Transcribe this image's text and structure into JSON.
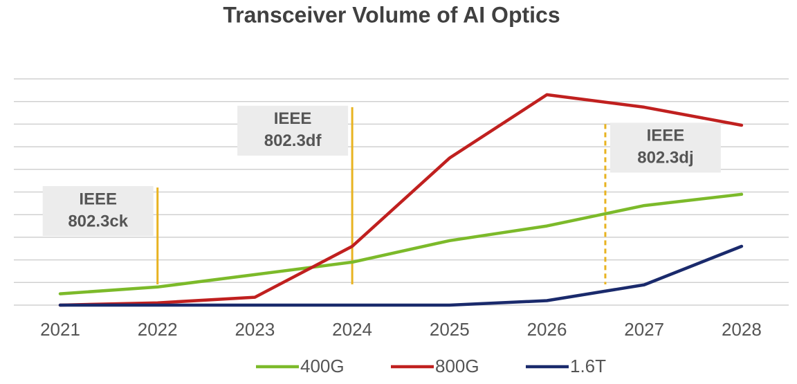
{
  "chart_data": {
    "type": "line",
    "title": "Transceiver Volume of AI Optics",
    "categories": [
      "2021",
      "2022",
      "2023",
      "2024",
      "2025",
      "2026",
      "2027",
      "2028"
    ],
    "series": [
      {
        "name": "400G",
        "color": "#7cba2a",
        "values": [
          0.5,
          0.8,
          1.35,
          1.9,
          2.85,
          3.5,
          4.4,
          4.9
        ]
      },
      {
        "name": "800G",
        "color": "#c0201f",
        "values": [
          0,
          0.1,
          0.35,
          2.6,
          6.5,
          9.3,
          8.75,
          7.95
        ]
      },
      {
        "name": "1.6T",
        "color": "#1a2a6c",
        "values": [
          0,
          0,
          0,
          0,
          0,
          0.2,
          0.9,
          2.6
        ]
      }
    ],
    "ylim": [
      0,
      10
    ],
    "yticks": [
      0,
      1,
      2,
      3,
      4,
      5,
      6,
      7,
      8,
      9,
      10
    ],
    "grid": true,
    "legend": "bottom",
    "annotations": [
      {
        "lines": [
          "IEEE",
          "802.3ck"
        ],
        "x": 2022,
        "y": 5.2,
        "style": "solid",
        "side": "left",
        "color": "#e8b321"
      },
      {
        "lines": [
          "IEEE",
          "802.3df"
        ],
        "x": 2024,
        "y": 8.75,
        "style": "solid",
        "side": "left",
        "color": "#e8b321"
      },
      {
        "lines": [
          "IEEE",
          "802.3dj"
        ],
        "x": 2026.6,
        "y": 8.0,
        "style": "dashed",
        "side": "right",
        "color": "#e8b321"
      }
    ]
  }
}
